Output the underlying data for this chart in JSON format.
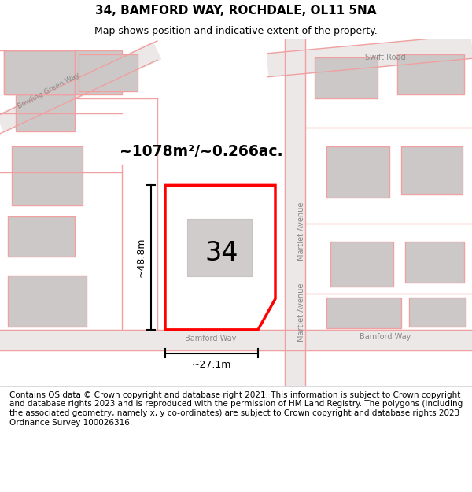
{
  "title": "34, BAMFORD WAY, ROCHDALE, OL11 5NA",
  "subtitle": "Map shows position and indicative extent of the property.",
  "footer": "Contains OS data © Crown copyright and database right 2021. This information is subject to Crown copyright and database rights 2023 and is reproduced with the permission of HM Land Registry. The polygons (including the associated geometry, namely x, y co-ordinates) are subject to Crown copyright and database rights 2023 Ordnance Survey 100026316.",
  "area_label": "~1078m²/~0.266ac.",
  "number_label": "34",
  "width_label": "~27.1m",
  "height_label": "~48.8m",
  "background_color": "#f2eded",
  "plot_edge_color": "#ff0000",
  "building_color": "#ccc8c8",
  "road_line_color": "#f0a0a0",
  "street_label_color": "#888888",
  "title_fontsize": 11,
  "subtitle_fontsize": 9,
  "footer_fontsize": 7.5
}
